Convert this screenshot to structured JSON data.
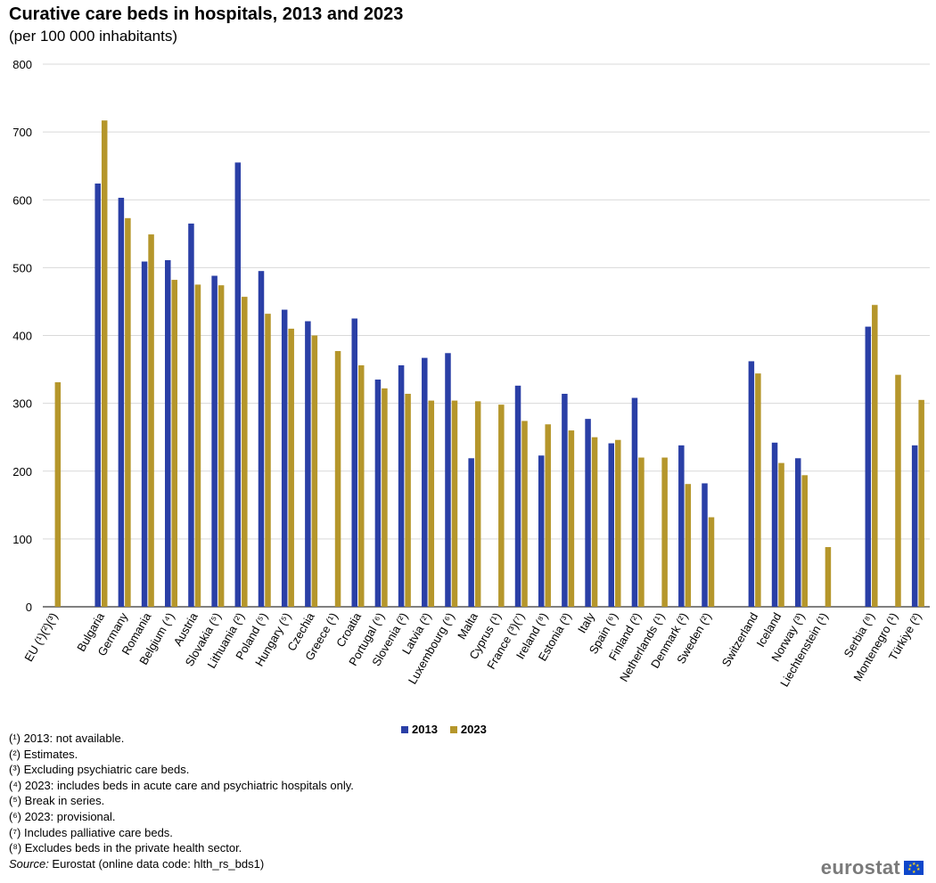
{
  "title": "Curative care beds in hospitals, 2013 and 2023",
  "subtitle": "(per 100 000 inhabitants)",
  "colors": {
    "2013": "#2a3fa6",
    "2023": "#b5962b",
    "grid": "#d9d9d9"
  },
  "legend": [
    {
      "label": "2013",
      "color": "#2a3fa6"
    },
    {
      "label": "2023",
      "color": "#b5962b"
    }
  ],
  "footnotes": [
    "(¹) 2013: not available.",
    "(²) Estimates.",
    "(³) Excluding psychiatric care beds.",
    "(⁴) 2023: includes beds in acute care and psychiatric hospitals only.",
    "(⁵) Break in series.",
    "(⁶) 2023: provisional.",
    "(⁷) Includes palliative care beds.",
    "(⁸) Excludes beds in the private health sector."
  ],
  "source": {
    "label": "Source:",
    "text": " Eurostat (online data code: hlth_rs_bds1)"
  },
  "logo": {
    "text": "eurostat",
    "flag": "eu-flag-icon"
  },
  "chart_data": {
    "type": "bar",
    "ylim": [
      0,
      800
    ],
    "yticks": [
      0,
      100,
      200,
      300,
      400,
      500,
      600,
      700,
      800
    ],
    "grid": true,
    "legend_position": "bottom-center",
    "categories": [
      "EU (¹)(²)(³)",
      "",
      "Bulgaria",
      "Germany",
      "Romania",
      "Belgium (⁴)",
      "Austria",
      "Slovakia (⁵)",
      "Lithuania (²)",
      "Poland (⁵)",
      "Hungary (⁵)",
      "Czechia",
      "Greece (¹)",
      "Croatia",
      "Portugal (⁶)",
      "Slovenia (²)",
      "Latvia (²)",
      "Luxembourg (⁶)",
      "Malta",
      "Cyprus (¹)",
      "France (³)(⁷)",
      "Ireland (⁸)",
      "Estonia (³)",
      "Italy",
      "Spain (⁶)",
      "Finland (²)",
      "Netherlands (¹)",
      "Denmark (²)",
      "Sweden (²)",
      "",
      "Switzerland",
      "Iceland",
      "Norway (³)",
      "Liechtenstein (¹)",
      "",
      "Serbia (⁸)",
      "Montenegro (¹)",
      "Türkiye (²)"
    ],
    "series": [
      {
        "name": "2013",
        "values": [
          null,
          null,
          624,
          603,
          509,
          511,
          565,
          488,
          655,
          495,
          438,
          421,
          null,
          425,
          335,
          356,
          367,
          374,
          219,
          null,
          326,
          223,
          314,
          277,
          241,
          308,
          null,
          238,
          182,
          null,
          362,
          242,
          219,
          null,
          null,
          413,
          null,
          238
        ]
      },
      {
        "name": "2023",
        "values": [
          331,
          null,
          717,
          573,
          549,
          482,
          475,
          474,
          457,
          432,
          410,
          400,
          377,
          356,
          322,
          314,
          304,
          304,
          303,
          298,
          274,
          269,
          260,
          250,
          246,
          220,
          220,
          181,
          132,
          null,
          344,
          212,
          194,
          88,
          null,
          445,
          342,
          305
        ]
      }
    ]
  }
}
